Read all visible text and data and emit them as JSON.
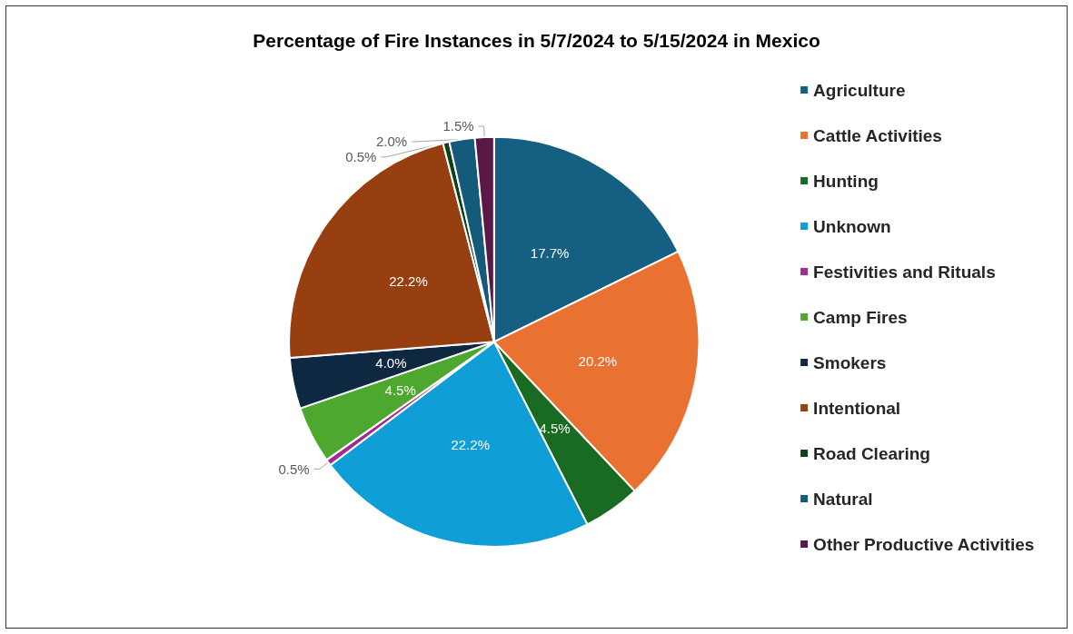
{
  "chart_data": {
    "type": "pie",
    "title": "Percentage of Fire Instances in 5/7/2024 to 5/15/2024 in Mexico",
    "categories": [
      "Agriculture",
      "Cattle Activities",
      "Hunting",
      "Unknown",
      "Festivities and Rituals",
      "Camp Fires",
      "Smokers",
      "Intentional",
      "Road Clearing",
      "Natural",
      "Other Productive Activities"
    ],
    "values": [
      17.7,
      20.2,
      4.5,
      22.2,
      0.5,
      4.5,
      4.0,
      22.2,
      0.5,
      2.0,
      1.5
    ],
    "value_labels": [
      "17.7%",
      "20.2%",
      "4.5%",
      "22.2%",
      "0.5%",
      "4.5%",
      "4.0%",
      "22.2%",
      "0.5%",
      "2.0%",
      "1.5%"
    ],
    "colors": [
      "#156082",
      "#e97132",
      "#196b24",
      "#0f9ed5",
      "#a02b93",
      "#4ea72e",
      "#0e2841",
      "#983f12",
      "#0f401a",
      "#135a7b",
      "#5c1749"
    ],
    "legend": "right"
  }
}
